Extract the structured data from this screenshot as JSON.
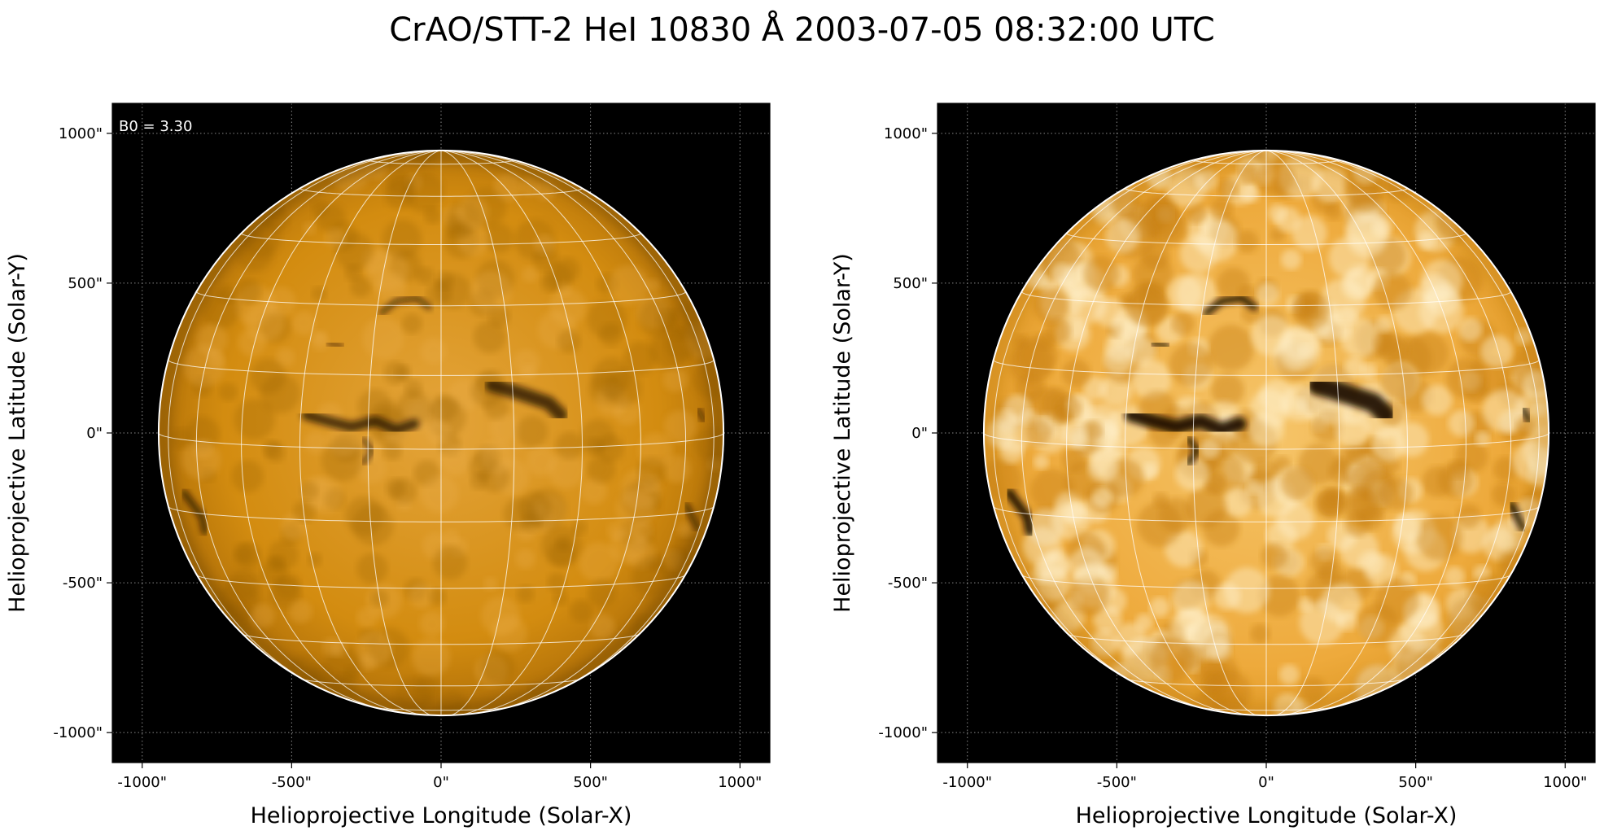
{
  "title": "CrAO/STT-2 HeI 10830 Å 2003-07-05 08:32:00 UTC",
  "panels": [
    {
      "id": "left",
      "xlabel": "Helioprojective Longitude (Solar-X)",
      "ylabel": "Helioprojective Latitude (Solar-Y)",
      "annotation": "B0 = 3.30",
      "style": "original"
    },
    {
      "id": "right",
      "xlabel": "Helioprojective Longitude (Solar-X)",
      "ylabel": "Helioprojective Latitude (Solar-Y)",
      "annotation": "",
      "style": "enhanced"
    }
  ],
  "axis": {
    "range": [
      -1100,
      1100
    ],
    "ticks": [
      -1000,
      -500,
      0,
      500,
      1000
    ],
    "x_tick_labels": [
      "-1000\"",
      "-500\"",
      "0\"",
      "500\"",
      "1000\""
    ],
    "y_tick_labels": [
      "-1000\"",
      "-500\"",
      "0\"",
      "500\"",
      "1000\""
    ]
  },
  "sun": {
    "radius_arcsec": 945,
    "b0_deg": 3.3
  },
  "colors": {
    "background": "#000000",
    "disk_left": "#d38c10",
    "disk_right": "#f0b24a",
    "limb": "#ffffff",
    "grid": "#ffffff",
    "filament": "#1a0d00"
  }
}
